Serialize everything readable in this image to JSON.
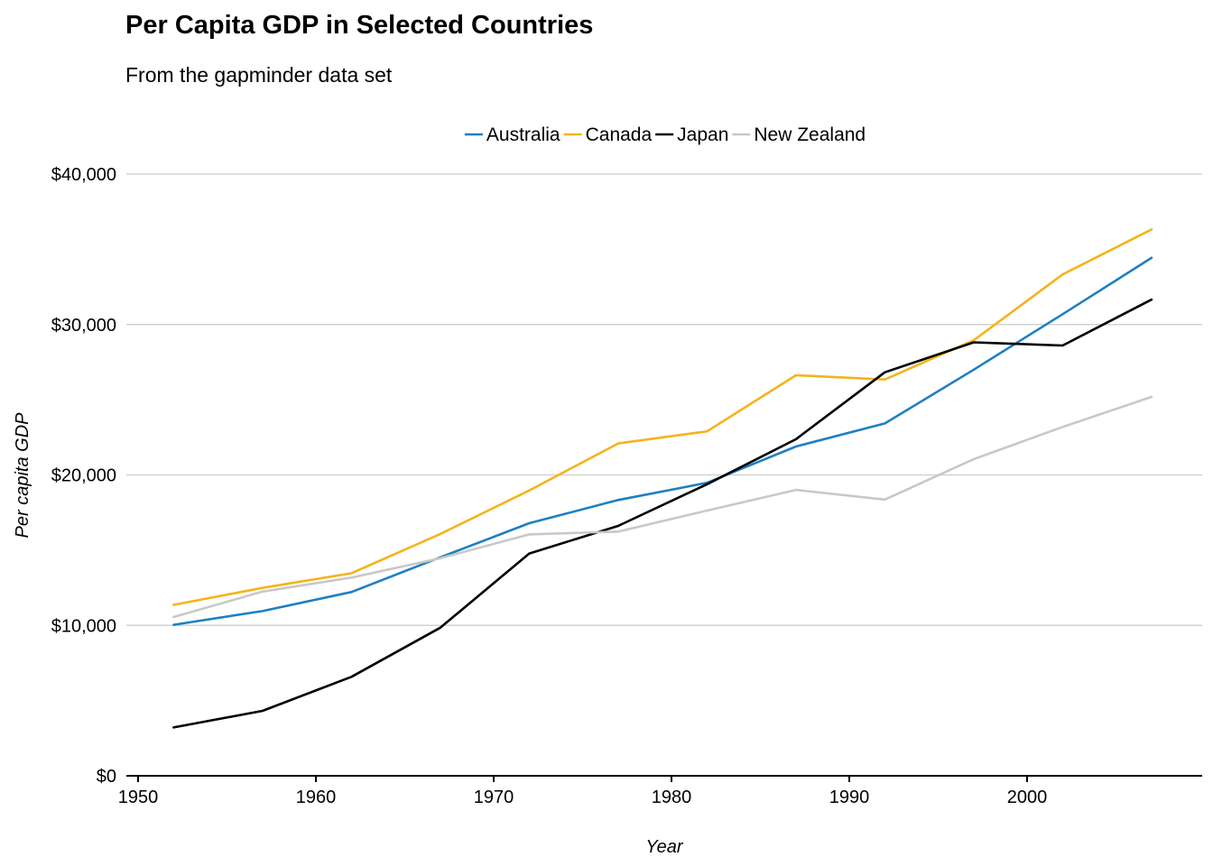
{
  "chart_data": {
    "type": "line",
    "title": "Per Capita GDP in Selected Countries",
    "subtitle": "From the gapminder data set",
    "xlabel": "Year",
    "ylabel": "Per capita GDP",
    "xlim": [
      1950,
      2010
    ],
    "ylim": [
      0,
      40000
    ],
    "x_ticks": [
      1950,
      1960,
      1970,
      1980,
      1990,
      2000
    ],
    "y_ticks": [
      0,
      10000,
      20000,
      30000,
      40000
    ],
    "y_tick_labels": [
      "$0",
      "$10,000",
      "$20,000",
      "$30,000",
      "$40,000"
    ],
    "grid": "horizontal",
    "legend_position": "top",
    "x": [
      1952,
      1957,
      1962,
      1967,
      1972,
      1977,
      1982,
      1987,
      1992,
      1997,
      2002,
      2007
    ],
    "series": [
      {
        "name": "Australia",
        "color": "#1f7fc1",
        "values": [
          10040,
          10950,
          12217,
          14526,
          16789,
          18334,
          19477,
          21889,
          23425,
          26998,
          30688,
          34435
        ]
      },
      {
        "name": "Canada",
        "color": "#f5b31c",
        "values": [
          11367,
          12490,
          13462,
          16077,
          18971,
          22091,
          22899,
          26627,
          26343,
          28955,
          33329,
          36319
        ]
      },
      {
        "name": "Japan",
        "color": "#000000",
        "values": [
          3217,
          4318,
          6577,
          9847,
          14779,
          16610,
          19384,
          22376,
          26825,
          28817,
          28605,
          31656
        ]
      },
      {
        "name": "New Zealand",
        "color": "#c8c8c8",
        "values": [
          10557,
          12247,
          13176,
          14464,
          16046,
          16234,
          17632,
          19007,
          18363,
          21050,
          23190,
          25185
        ]
      }
    ]
  }
}
